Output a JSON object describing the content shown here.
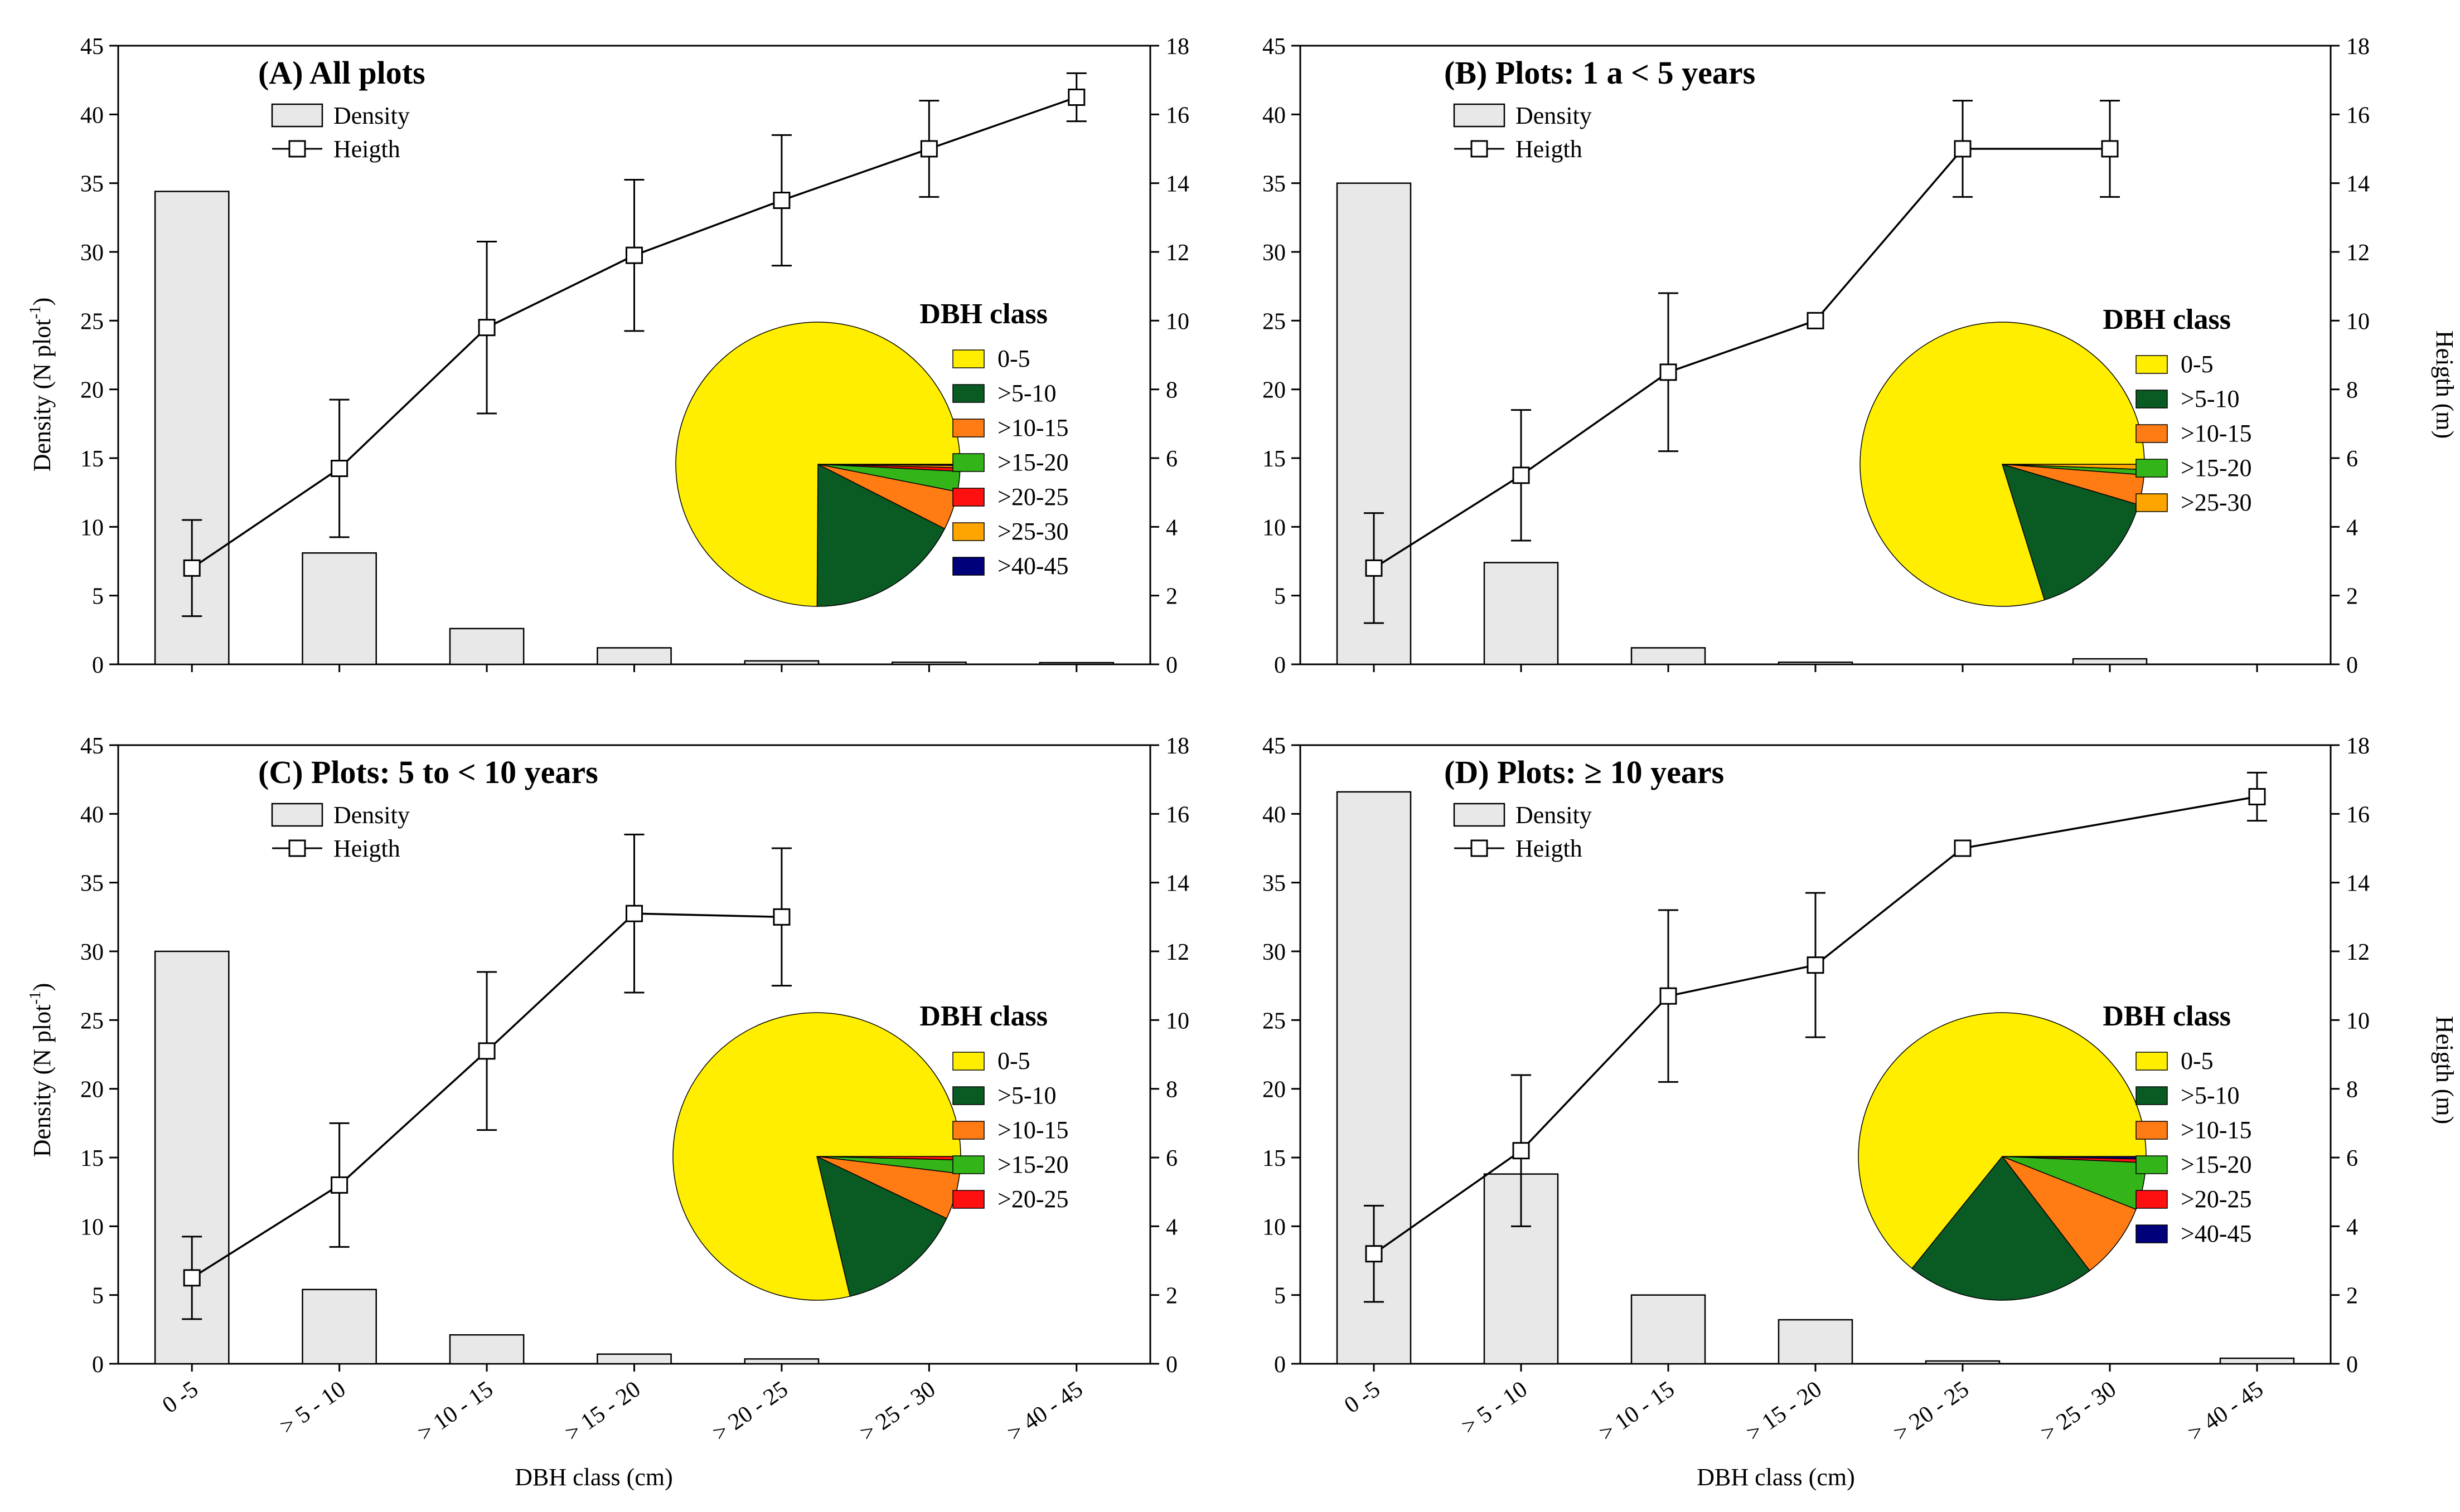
{
  "figure": {
    "x_axis_label": "DBH class (cm)",
    "y_left_label_main": "Density (N plot",
    "y_left_label_sup": "-1",
    "y_left_label_end": ")",
    "y_right_label": "Heigth (m)",
    "legend": {
      "density": "Density",
      "height": "Heigth"
    },
    "pie_legend_title": "DBH class",
    "categories": [
      "0 -5",
      "> 5 - 10",
      "> 10 - 15",
      "> 15 - 20",
      "> 20 - 25",
      "> 25 - 30",
      "> 40 - 45"
    ],
    "left_ticks": [
      0,
      5,
      10,
      15,
      20,
      25,
      30,
      35,
      40,
      45
    ],
    "right_ticks": [
      0,
      2,
      4,
      6,
      8,
      10,
      12,
      14,
      16,
      18
    ],
    "colors": {
      "bar_fill": "#e8e8e8",
      "0-5": "#ffee00",
      ">5-10": "#0a5a23",
      ">10-15": "#ff7b14",
      ">15-20": "#33b51a",
      ">20-25": "#ff1010",
      ">25-30": "#ffa500",
      ">40-45": "#00007a"
    }
  },
  "chart_data": [
    {
      "type": "bar",
      "title": "(A) All plots",
      "categories": [
        "0 -5",
        "> 5 - 10",
        "> 10 - 15",
        "> 15 - 20",
        "> 20 - 25",
        "> 25 - 30",
        "> 40 - 45"
      ],
      "series": [
        {
          "name": "Density",
          "type": "bar",
          "axis": "left",
          "values": [
            34.4,
            8.1,
            2.6,
            1.2,
            0.25,
            0.15,
            0.12
          ]
        },
        {
          "name": "Heigth",
          "type": "line",
          "axis": "right",
          "values": [
            2.8,
            5.7,
            9.8,
            11.9,
            13.5,
            15.0,
            16.5
          ],
          "error": [
            1.4,
            2.0,
            2.5,
            2.2,
            1.9,
            1.4,
            0.7
          ]
        }
      ],
      "ylim_left": [
        0,
        45
      ],
      "ylim_right": [
        0,
        18
      ],
      "pie": {
        "title": "DBH class",
        "labels": [
          "0-5",
          ">5-10",
          ">10-15",
          ">15-20",
          ">20-25",
          ">25-30",
          ">40-45"
        ],
        "values": [
          74.9,
          17.6,
          4.4,
          2.3,
          0.4,
          0.25,
          0.15
        ]
      }
    },
    {
      "type": "bar",
      "title": "(B) Plots: 1 a < 5 years",
      "categories": [
        "0 -5",
        "> 5 - 10",
        "> 10 - 15",
        "> 15 - 20",
        "> 20 - 25",
        "> 25 - 30",
        "> 40 - 45"
      ],
      "series": [
        {
          "name": "Density",
          "type": "bar",
          "axis": "left",
          "values": [
            35.0,
            7.4,
            1.2,
            0.15,
            0.0,
            0.4,
            0.0
          ]
        },
        {
          "name": "Heigth",
          "type": "line",
          "axis": "right",
          "values": [
            2.8,
            5.5,
            8.5,
            10.0,
            15.0,
            15.0,
            null
          ],
          "error": [
            1.6,
            1.9,
            2.3,
            0,
            1.4,
            1.4,
            0
          ]
        }
      ],
      "ylim_left": [
        0,
        45
      ],
      "ylim_right": [
        0,
        18
      ],
      "pie": {
        "title": "DBH class",
        "labels": [
          "0-5",
          ">5-10",
          ">10-15",
          ">15-20",
          ">25-30"
        ],
        "values": [
          79.8,
          15.6,
          3.4,
          0.6,
          0.6
        ]
      }
    },
    {
      "type": "bar",
      "title": "(C) Plots: 5 to < 10 years",
      "categories": [
        "0 -5",
        "> 5 - 10",
        "> 10 - 15",
        "> 15 - 20",
        "> 20 - 25",
        "> 25 - 30",
        "> 40 - 45"
      ],
      "series": [
        {
          "name": "Density",
          "type": "bar",
          "axis": "left",
          "values": [
            30.0,
            5.4,
            2.1,
            0.7,
            0.35,
            0.0,
            0.0
          ]
        },
        {
          "name": "Heigth",
          "type": "line",
          "axis": "right",
          "values": [
            2.5,
            5.2,
            9.1,
            13.1,
            13.0,
            null,
            null
          ],
          "error": [
            1.2,
            1.8,
            2.3,
            2.3,
            2.0,
            0,
            0
          ]
        }
      ],
      "ylim_left": [
        0,
        45
      ],
      "ylim_right": [
        0,
        18
      ],
      "pie": {
        "title": "DBH class",
        "labels": [
          "0-5",
          ">5-10",
          ">10-15",
          ">15-20",
          ">20-25"
        ],
        "values": [
          78.7,
          14.2,
          5.2,
          1.5,
          0.4
        ]
      }
    },
    {
      "type": "bar",
      "title": "(D) Plots: ≥ 10 years",
      "categories": [
        "0 -5",
        "> 5 - 10",
        "> 10 - 15",
        "> 15 - 20",
        "> 20 - 25",
        "> 25 - 30",
        "> 40 - 45"
      ],
      "series": [
        {
          "name": "Density",
          "type": "bar",
          "axis": "left",
          "values": [
            41.6,
            13.8,
            5.0,
            3.2,
            0.2,
            0.0,
            0.4
          ]
        },
        {
          "name": "Heigth",
          "type": "line",
          "axis": "right",
          "values": [
            3.2,
            6.2,
            10.7,
            11.6,
            15.0,
            null,
            16.5
          ],
          "error": [
            1.4,
            2.2,
            2.5,
            2.1,
            0,
            0,
            0.7
          ]
        }
      ],
      "ylim_left": [
        0,
        45
      ],
      "ylim_right": [
        0,
        18
      ],
      "pie": {
        "title": "DBH class",
        "labels": [
          "0-5",
          ">5-10",
          ">10-15",
          ">15-20",
          ">20-25",
          ">40-45"
        ],
        "values": [
          64.2,
          21.2,
          8.6,
          5.3,
          0.4,
          0.3
        ]
      }
    }
  ]
}
